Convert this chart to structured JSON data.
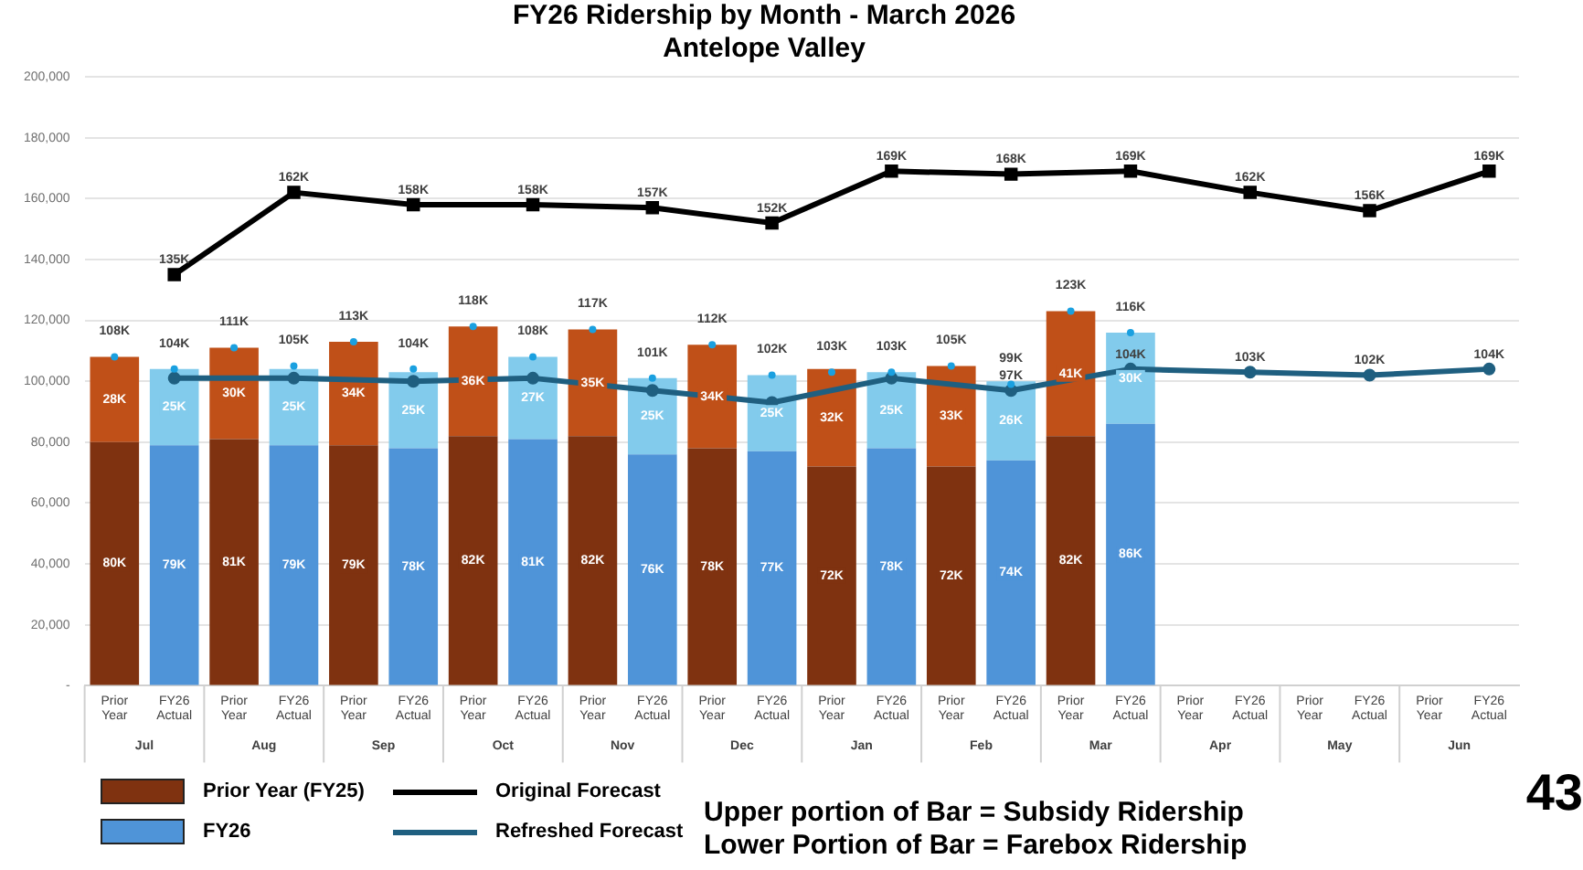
{
  "chart_data": {
    "type": "bar",
    "title": "FY26 Ridership by Month - March 2026",
    "subtitle": "Antelope Valley",
    "categories": [
      "Prior Year",
      "FY26 Actual",
      "Prior Year",
      "FY26 Actual",
      "Prior Year",
      "FY26 Actual",
      "Prior Year",
      "FY26 Actual",
      "Prior Year",
      "FY26 Actual",
      "Prior Year",
      "FY26 Actual",
      "Prior Year",
      "FY26 Actual",
      "Prior Year",
      "FY26 Actual",
      "Prior Year",
      "FY26 Actual",
      "Prior Year",
      "FY26 Actual",
      "Prior Year",
      "FY26 Actual",
      "Prior Year",
      "FY26 Actual"
    ],
    "stacked": true,
    "series": [
      {
        "name": "Prior Year (FY25)",
        "color": "#7f3210",
        "values": [
          80000,
          null,
          81000,
          null,
          79000,
          null,
          82000,
          null,
          82000,
          null,
          78000,
          null,
          72000,
          null,
          72000,
          null,
          82000,
          null,
          null,
          null,
          null,
          null,
          null,
          null
        ],
        "value_labels": [
          "80K",
          null,
          "81K",
          null,
          "79K",
          null,
          "82K",
          null,
          "82K",
          null,
          "78K",
          null,
          "72K",
          null,
          "72K",
          null,
          "82K",
          null,
          null,
          null,
          null,
          null,
          null,
          null
        ]
      },
      {
        "color": "#c05018",
        "values": [
          28000,
          null,
          30000,
          null,
          34000,
          null,
          36000,
          null,
          35000,
          null,
          34000,
          null,
          32000,
          null,
          33000,
          null,
          41000,
          null,
          null,
          null,
          null,
          null,
          null,
          null
        ],
        "value_labels": [
          "28K",
          null,
          "30K",
          null,
          "34K",
          null,
          "36K",
          null,
          "35K",
          null,
          "34K",
          null,
          "32K",
          null,
          "33K",
          null,
          "41K",
          null,
          null,
          null,
          null,
          null,
          null,
          null
        ]
      },
      {
        "name": "FY26",
        "color": "#4f94d8",
        "values": [
          null,
          79000,
          null,
          79000,
          null,
          78000,
          null,
          81000,
          null,
          76000,
          null,
          77000,
          null,
          78000,
          null,
          74000,
          null,
          86000,
          null,
          null,
          null,
          null,
          null,
          null
        ],
        "value_labels": [
          null,
          "79K",
          null,
          "79K",
          null,
          "78K",
          null,
          "81K",
          null,
          "76K",
          null,
          "77K",
          null,
          "78K",
          null,
          "74K",
          null,
          "86K",
          null,
          null,
          null,
          null,
          null,
          null
        ]
      },
      {
        "color": "#82cbec",
        "values": [
          null,
          25000,
          null,
          25000,
          null,
          25000,
          null,
          27000,
          null,
          25000,
          null,
          25000,
          null,
          25000,
          null,
          26000,
          null,
          30000,
          null,
          null,
          null,
          null,
          null,
          null
        ],
        "value_labels": [
          null,
          "25K",
          null,
          "25K",
          null,
          "25K",
          null,
          "27K",
          null,
          "25K",
          null,
          "25K",
          null,
          "25K",
          null,
          "26K",
          null,
          "30K",
          null,
          null,
          null,
          null,
          null,
          null
        ]
      },
      {
        "type": "scatter",
        "color": "#1aa0e0",
        "marker": "circle",
        "values": [
          108000,
          104000,
          111000,
          105000,
          113000,
          104000,
          118000,
          108000,
          117000,
          101000,
          112000,
          102000,
          103000,
          103000,
          105000,
          99000,
          123000,
          116000,
          null,
          null,
          null,
          null,
          null,
          null
        ],
        "value_labels": [
          "108K",
          "104K",
          "111K",
          "105K",
          "113K",
          "104K",
          "118K",
          "108K",
          "117K",
          "101K",
          "112K",
          "102K",
          "103K",
          "103K",
          "105K",
          "99K",
          "123K",
          "116K",
          null,
          null,
          null,
          null,
          null,
          null
        ]
      },
      {
        "type": "line",
        "name": "Original Forecast",
        "color": "#000000",
        "marker": "square",
        "values": [
          null,
          135000,
          null,
          162000,
          null,
          158000,
          null,
          158000,
          null,
          157000,
          null,
          152000,
          null,
          169000,
          null,
          168000,
          null,
          169000,
          null,
          162000,
          null,
          156000,
          null,
          169000
        ],
        "value_labels": [
          null,
          "135K",
          null,
          "162K",
          null,
          "158K",
          null,
          "158K",
          null,
          "157K",
          null,
          "152K",
          null,
          "169K",
          null,
          "168K",
          null,
          "169K",
          null,
          "162K",
          null,
          "156K",
          null,
          "169K"
        ]
      },
      {
        "type": "line",
        "name": "Refreshed Forecast",
        "color": "#1f5f80",
        "marker": "circle",
        "values": [
          null,
          101000,
          null,
          101000,
          null,
          100000,
          null,
          101000,
          null,
          97000,
          null,
          93000,
          null,
          101000,
          null,
          97000,
          null,
          104000,
          null,
          103000,
          null,
          102000,
          null,
          104000
        ],
        "value_labels": [
          null,
          null,
          null,
          null,
          null,
          null,
          null,
          null,
          null,
          null,
          null,
          null,
          null,
          null,
          null,
          "97K",
          null,
          "104K",
          null,
          "103K",
          null,
          "102K",
          null,
          "104K"
        ]
      }
    ],
    "ylim": [
      0,
      200000
    ],
    "yticks": [
      {
        "value": 0,
        "label": "-"
      },
      {
        "value": 20000,
        "label": "20,000"
      },
      {
        "value": 40000,
        "label": "40,000"
      },
      {
        "value": 60000,
        "label": "60,000"
      },
      {
        "value": 80000,
        "label": "80,000"
      },
      {
        "value": 100000,
        "label": "100,000"
      },
      {
        "value": 120000,
        "label": "120,000"
      },
      {
        "value": 140000,
        "label": "140,000"
      },
      {
        "value": 160000,
        "label": "160,000"
      },
      {
        "value": 180000,
        "label": "180,000"
      },
      {
        "value": 200000,
        "label": "200,000"
      }
    ],
    "grid": "y",
    "legend": "bottom left",
    "annotations": [
      "Jul",
      "Aug",
      "Sep",
      "Oct",
      "Nov",
      "Dec",
      "Jan",
      "Feb",
      "Mar",
      "Apr",
      "May",
      "Jun",
      "Upper portion of Bar = Subsidy Ridership",
      "Lower Portion of Bar = Farebox Ridership",
      "43"
    ]
  }
}
